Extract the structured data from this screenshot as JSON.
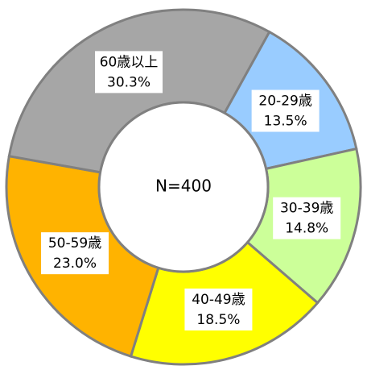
{
  "chart_data": {
    "type": "donut",
    "categories": [
      "20-29歳",
      "30-39歳",
      "40-49歳",
      "50-59歳",
      "60歳以上"
    ],
    "values": [
      13.5,
      14.8,
      18.5,
      23.0,
      30.3
    ],
    "value_labels": [
      "13.5%",
      "14.8%",
      "18.5%",
      "23.0%",
      "30.3%"
    ],
    "colors": [
      "#99ccff",
      "#ccff99",
      "#ffff00",
      "#ffb300",
      "#a6a6a6"
    ],
    "center_label": "N=400"
  }
}
